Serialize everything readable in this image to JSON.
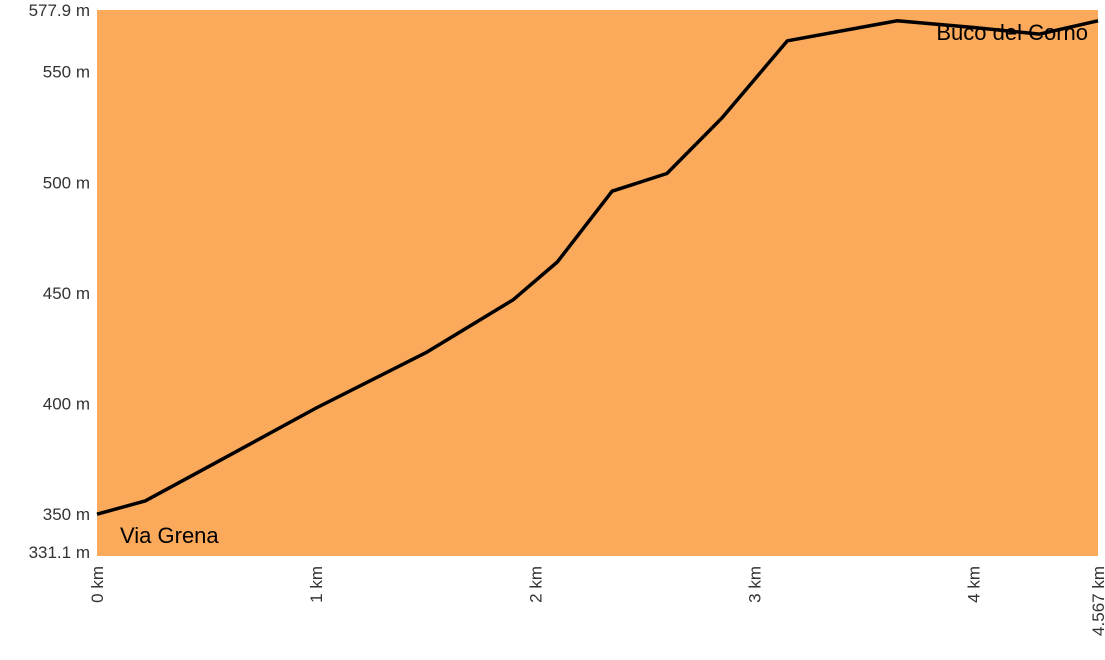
{
  "chart_data": {
    "type": "area",
    "title": "",
    "xlabel": "",
    "ylabel": "",
    "x_unit": "km",
    "y_unit": "m",
    "xlim": [
      0,
      4.567
    ],
    "ylim": [
      331.1,
      577.9
    ],
    "x_tick_labels": [
      "0 km",
      "1 km",
      "2 km",
      "3 km",
      "4 km",
      "4.567 km"
    ],
    "x_tick_values": [
      0,
      1,
      2,
      3,
      4,
      4.567
    ],
    "y_tick_labels": [
      "331.1 m",
      "350 m",
      "400 m",
      "450 m",
      "500 m",
      "550 m",
      "577.9 m"
    ],
    "y_tick_values": [
      331.1,
      350,
      400,
      450,
      500,
      550,
      577.9
    ],
    "grid": false,
    "start_label": "Via Grena",
    "end_label": "Buco del Corno",
    "fill_color": "#fba95a",
    "line_color": "#000000",
    "series": [
      {
        "x": [
          0,
          0.22,
          0.5,
          1.0,
          1.5,
          1.9,
          2.1,
          2.35,
          2.6,
          2.85,
          3.15,
          3.65,
          4.0,
          4.3,
          4.567
        ],
        "y": [
          350,
          356,
          371,
          398,
          423,
          447,
          464,
          496,
          504,
          529,
          564,
          573,
          570,
          567,
          573
        ]
      }
    ]
  }
}
